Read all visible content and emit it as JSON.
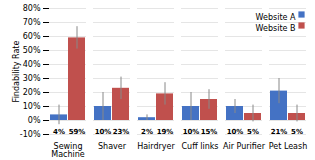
{
  "chart_data": {
    "type": "bar",
    "categories": [
      "Sewing\nMachine",
      "Shaver",
      "Hairdryer",
      "Cuff links",
      "Air Purifier",
      "Pet Leash"
    ],
    "series": [
      {
        "name": "Website A",
        "color": "#4472C4",
        "values": [
          4,
          10,
          2,
          10,
          10,
          21
        ],
        "errors": [
          7,
          10,
          2,
          10,
          5,
          9
        ],
        "value_labels": [
          "4%",
          "10%",
          "2%",
          "10%",
          "10%",
          "21%"
        ]
      },
      {
        "name": "Website B",
        "color": "#C0504D",
        "values": [
          59,
          23,
          19,
          15,
          5,
          5
        ],
        "errors": [
          8,
          8,
          8,
          7,
          6,
          6
        ],
        "value_labels": [
          "59%",
          "23%",
          "19%",
          "15%",
          "5%",
          "5%"
        ]
      }
    ],
    "ylabel": "Findability Rate",
    "ylim": [
      -10,
      80
    ],
    "yticks": [
      {
        "value": -10,
        "label": "-10%"
      },
      {
        "value": 0,
        "label": "0%"
      },
      {
        "value": 10,
        "label": "10%"
      },
      {
        "value": 20,
        "label": "20%"
      },
      {
        "value": 30,
        "label": "30%"
      },
      {
        "value": 40,
        "label": "40%"
      },
      {
        "value": 50,
        "label": "50%"
      },
      {
        "value": 60,
        "label": "60%"
      },
      {
        "value": 70,
        "label": "70%"
      },
      {
        "value": 80,
        "label": "80%"
      }
    ],
    "grid": true,
    "legend": "upper right",
    "data_labels": true
  }
}
